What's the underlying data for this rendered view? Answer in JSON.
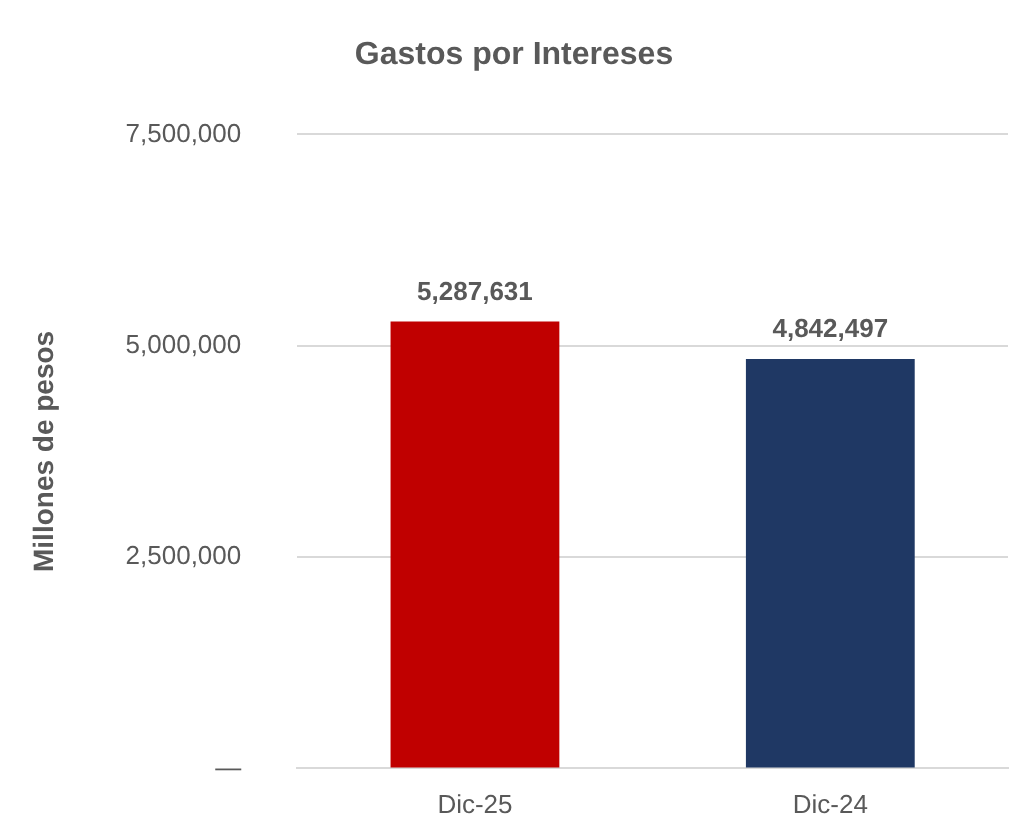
{
  "chart_data": {
    "type": "bar",
    "title": "Gastos por Intereses",
    "ylabel": "Millones de pesos",
    "categories": [
      "Dic-25",
      "Dic-24"
    ],
    "values": [
      5287631,
      4842497
    ],
    "value_labels": [
      "5,287,631",
      "4,842,497"
    ],
    "colors": [
      "#c00000",
      "#1f3864"
    ],
    "ylim": [
      0,
      7500000
    ],
    "yticks": [
      {
        "value": 0,
        "label": "—"
      },
      {
        "value": 2500000,
        "label": "2,500,000"
      },
      {
        "value": 5000000,
        "label": "5,000,000"
      },
      {
        "value": 7500000,
        "label": "7,500,000"
      }
    ],
    "grid": "y",
    "legend": false
  }
}
